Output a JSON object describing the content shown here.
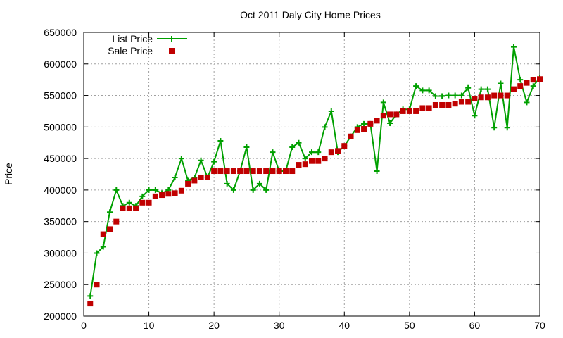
{
  "chart_data": {
    "type": "line",
    "title": "Oct 2011 Daly City Home Prices",
    "xlabel": "",
    "ylabel": "Price",
    "xlim": [
      0,
      70
    ],
    "ylim": [
      200000,
      650000
    ],
    "x_ticks": [
      "0",
      "10",
      "20",
      "30",
      "40",
      "50",
      "60",
      "70"
    ],
    "y_ticks": [
      "200000",
      "250000",
      "300000",
      "350000",
      "400000",
      "450000",
      "500000",
      "550000",
      "600000",
      "650000"
    ],
    "grid": true,
    "legend_position": "top-left",
    "series": [
      {
        "name": "List Price",
        "style": "line-with-plus-markers",
        "color": "#00a000",
        "x": [
          1,
          2,
          3,
          4,
          5,
          6,
          7,
          8,
          9,
          10,
          11,
          12,
          13,
          14,
          15,
          16,
          17,
          18,
          19,
          20,
          21,
          22,
          23,
          24,
          25,
          26,
          27,
          28,
          29,
          30,
          31,
          32,
          33,
          34,
          35,
          36,
          37,
          38,
          39,
          40,
          41,
          42,
          43,
          44,
          45,
          46,
          47,
          48,
          49,
          50,
          51,
          52,
          53,
          54,
          55,
          56,
          57,
          58,
          59,
          60,
          61,
          62,
          63,
          64,
          65,
          66,
          67,
          68,
          69,
          70
        ],
        "y": [
          232000,
          300000,
          310000,
          365000,
          400000,
          375000,
          380000,
          375000,
          390000,
          400000,
          400000,
          395000,
          400000,
          420000,
          450000,
          415000,
          420000,
          447000,
          420000,
          445000,
          478000,
          410000,
          400000,
          430000,
          468000,
          400000,
          410000,
          400000,
          460000,
          430000,
          430000,
          468000,
          475000,
          450000,
          460000,
          460000,
          500000,
          525000,
          460000,
          470000,
          485000,
          500000,
          505000,
          505000,
          430000,
          539000,
          506000,
          520000,
          528000,
          528000,
          565000,
          558000,
          558000,
          549000,
          549000,
          550000,
          550000,
          550000,
          562000,
          518000,
          560000,
          560000,
          499000,
          569000,
          499000,
          627000,
          575000,
          539000,
          565000,
          578000
        ]
      },
      {
        "name": "Sale Price",
        "style": "square-markers",
        "color": "#c00000",
        "x": [
          1,
          2,
          3,
          4,
          5,
          6,
          7,
          8,
          9,
          10,
          11,
          12,
          13,
          14,
          15,
          16,
          17,
          18,
          19,
          20,
          21,
          22,
          23,
          24,
          25,
          26,
          27,
          28,
          29,
          30,
          31,
          32,
          33,
          34,
          35,
          36,
          37,
          38,
          39,
          40,
          41,
          42,
          43,
          44,
          45,
          46,
          47,
          48,
          49,
          50,
          51,
          52,
          53,
          54,
          55,
          56,
          57,
          58,
          59,
          60,
          61,
          62,
          63,
          64,
          65,
          66,
          67,
          68,
          69,
          70
        ],
        "y": [
          220000,
          250000,
          330000,
          338000,
          350000,
          371000,
          371000,
          371000,
          380000,
          380000,
          390000,
          392000,
          394000,
          395000,
          399000,
          410000,
          415000,
          420000,
          420000,
          430000,
          430000,
          430000,
          430000,
          430000,
          430000,
          430000,
          430000,
          430000,
          430000,
          430000,
          430000,
          430000,
          440000,
          441000,
          446000,
          446000,
          450000,
          460000,
          462000,
          470000,
          485000,
          495000,
          497000,
          505000,
          510000,
          518000,
          520000,
          520000,
          525000,
          525000,
          525000,
          530000,
          530000,
          535000,
          535000,
          535000,
          537000,
          540000,
          540000,
          545000,
          547000,
          547000,
          550000,
          550000,
          550000,
          560000,
          565000,
          570000,
          575000,
          576000
        ]
      }
    ]
  }
}
